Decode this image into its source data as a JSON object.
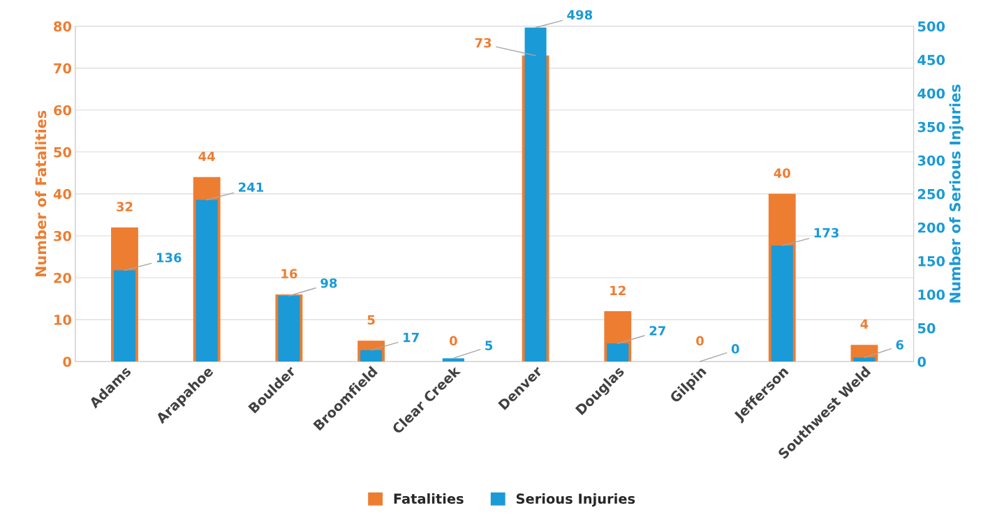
{
  "chart_data": {
    "type": "bar",
    "categories": [
      "Adams",
      "Arapahoe",
      "Boulder",
      "Broomfield",
      "Clear Creek",
      "Denver",
      "Douglas",
      "Gilpin",
      "Jefferson",
      "Southwest Weld"
    ],
    "series": [
      {
        "name": "Fatalities",
        "color": "#ed7d31",
        "axis": "y",
        "values": [
          32,
          44,
          16,
          5,
          0,
          73,
          12,
          0,
          40,
          4
        ]
      },
      {
        "name": "Serious Injuries",
        "color": "#1a9ad6",
        "axis": "y2",
        "values": [
          136,
          241,
          98,
          17,
          5,
          498,
          27,
          0,
          173,
          6
        ]
      }
    ],
    "ylabel": "Number of Fatalities",
    "y2label": "Number of Serious Injuries",
    "ylim": [
      0,
      80
    ],
    "yticks": [
      0,
      10,
      20,
      30,
      40,
      50,
      60,
      70,
      80
    ],
    "y2lim": [
      0,
      500
    ],
    "y2ticks": [
      0,
      50,
      100,
      150,
      200,
      250,
      300,
      350,
      400,
      450,
      500
    ],
    "grid": "y",
    "legend": "bottom",
    "data_labels": true
  }
}
